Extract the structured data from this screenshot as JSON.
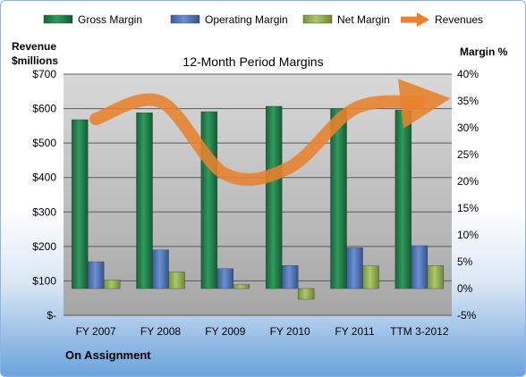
{
  "chart_data": {
    "type": "bar",
    "title": "12-Month Period Margins",
    "footer": "On Assignment",
    "categories": [
      "FY 2007",
      "FY 2008",
      "FY 2009",
      "FY 2010",
      "FY 2011",
      "TTM 3-2012"
    ],
    "left_axis": {
      "title_line1": "Revenue",
      "title_line2": "$millions",
      "ylim": [
        0,
        700
      ],
      "ticks": [
        "$-",
        "$100",
        "$200",
        "$300",
        "$400",
        "$500",
        "$600",
        "$700"
      ]
    },
    "right_axis": {
      "title": "Margin %",
      "ylim": [
        -5,
        40
      ],
      "ticks": [
        "-5%",
        "0%",
        "5%",
        "10%",
        "15%",
        "20%",
        "25%",
        "30%",
        "35%",
        "40%"
      ]
    },
    "series": [
      {
        "name": "Gross Margin",
        "axis": "right",
        "type": "bar",
        "color": "#1e7b45",
        "values": [
          31.5,
          32.8,
          33.0,
          34.0,
          33.6,
          33.3
        ]
      },
      {
        "name": "Operating Margin",
        "axis": "right",
        "type": "bar",
        "color": "#4a6fb5",
        "values": [
          5.0,
          7.2,
          3.7,
          4.3,
          7.6,
          8.0
        ]
      },
      {
        "name": "Net Margin",
        "axis": "right",
        "type": "bar",
        "color": "#8fb04a",
        "values": [
          1.6,
          3.1,
          0.7,
          -2.0,
          4.2,
          4.3
        ]
      },
      {
        "name": "Revenues",
        "axis": "left",
        "type": "line",
        "color": "#e8822e",
        "values": [
          570,
          620,
          410,
          430,
          600,
          620
        ]
      }
    ],
    "grid": true,
    "legend_position": "top"
  }
}
